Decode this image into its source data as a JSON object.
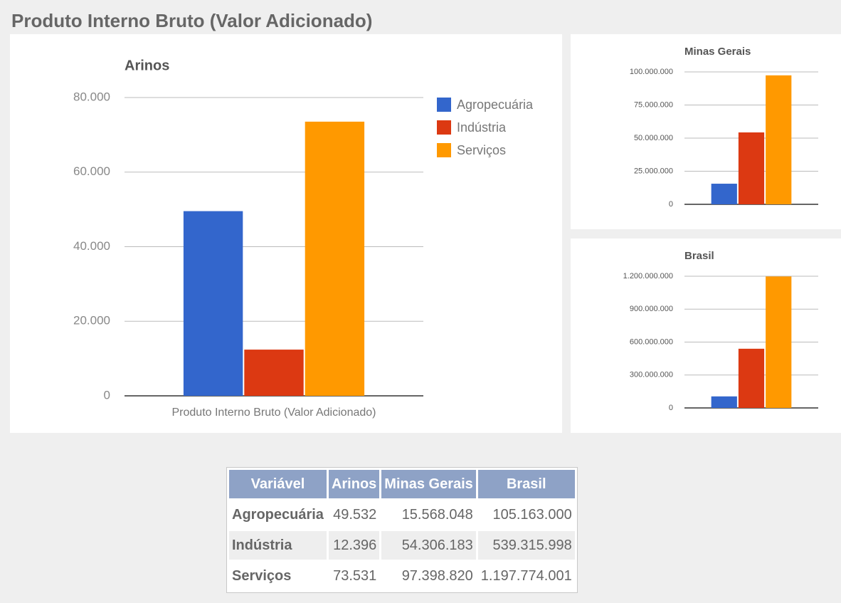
{
  "title": "Produto Interno Bruto (Valor Adicionado)",
  "chart_data": [
    {
      "type": "bar",
      "title": "Arinos",
      "categories": [
        "Produto Interno Bruto (Valor Adicionado)"
      ],
      "series": [
        {
          "name": "Agropecuária",
          "color": "#3366cc",
          "values": [
            49532
          ]
        },
        {
          "name": "Indústria",
          "color": "#dc3912",
          "values": [
            12396
          ]
        },
        {
          "name": "Serviços",
          "color": "#ff9900",
          "values": [
            73531
          ]
        }
      ],
      "ylim": [
        0,
        80000
      ],
      "yticks": [
        0,
        {
          "value": 20000,
          "label": "20.000"
        },
        {
          "value": 40000,
          "label": "40.000"
        },
        {
          "value": 60000,
          "label": "60.000"
        },
        {
          "value": 80000,
          "label": "80.000"
        }
      ],
      "grid": true,
      "legend": "right"
    },
    {
      "type": "bar",
      "title": "Minas Gerais",
      "categories": [
        null
      ],
      "series": [
        {
          "color": "#3366cc",
          "values": [
            15568048
          ]
        },
        {
          "color": "#dc3912",
          "values": [
            54306183
          ]
        },
        {
          "color": "#ff9900",
          "values": [
            97398820
          ]
        }
      ],
      "ylim": [
        0,
        100000000
      ],
      "yticks": [
        0,
        {
          "value": 25000000,
          "label": "25.000.000"
        },
        {
          "value": 50000000,
          "label": "50.000.000"
        },
        {
          "value": 75000000,
          "label": "75.000.000"
        },
        {
          "value": 100000000,
          "label": "100.000.000"
        }
      ],
      "grid": true
    },
    {
      "type": "bar",
      "title": "Brasil",
      "categories": [
        null
      ],
      "series": [
        {
          "color": "#3366cc",
          "values": [
            105163000
          ]
        },
        {
          "color": "#dc3912",
          "values": [
            539315998
          ]
        },
        {
          "color": "#ff9900",
          "values": [
            1197774001
          ]
        }
      ],
      "ylim": [
        0,
        1200000000
      ],
      "yticks": [
        0,
        {
          "value": 300000000,
          "label": "300.000.000"
        },
        {
          "value": 600000000,
          "label": "600.000.000"
        },
        {
          "value": 900000000,
          "label": "900.000.000"
        },
        {
          "value": 1200000000,
          "label": "1.200.000.000"
        }
      ],
      "grid": true
    }
  ],
  "table": {
    "header": [
      "Variável",
      "Arinos",
      "Minas Gerais",
      "Brasil"
    ],
    "rows": [
      [
        "Agropecuária",
        "49.532",
        "15.568.048",
        "105.163.000"
      ],
      [
        "Indústria",
        "12.396",
        "54.306.183",
        "539.315.998"
      ],
      [
        "Serviços",
        "73.531",
        "97.398.820",
        "1.197.774.001"
      ]
    ]
  }
}
